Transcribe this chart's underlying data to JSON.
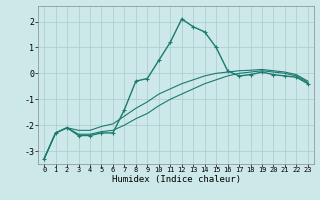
{
  "title": "",
  "xlabel": "Humidex (Indice chaleur)",
  "ylabel": "",
  "bg_color": "#cce8e8",
  "grid_color": "#aacccc",
  "line_color": "#1a7a6e",
  "xlim": [
    -0.5,
    23.5
  ],
  "ylim": [
    -3.5,
    2.6
  ],
  "xticks": [
    0,
    1,
    2,
    3,
    4,
    5,
    6,
    7,
    8,
    9,
    10,
    11,
    12,
    13,
    14,
    15,
    16,
    17,
    18,
    19,
    20,
    21,
    22,
    23
  ],
  "yticks": [
    -3,
    -2,
    -1,
    0,
    1,
    2
  ],
  "series": [
    {
      "x": [
        0,
        1,
        2,
        3,
        4,
        5,
        6,
        7,
        8,
        9,
        10,
        11,
        12,
        13,
        14,
        15,
        16,
        17,
        18,
        19,
        20,
        21,
        22,
        23
      ],
      "y": [
        -3.3,
        -2.3,
        -2.1,
        -2.4,
        -2.4,
        -2.3,
        -2.3,
        -1.4,
        -0.3,
        -0.2,
        0.5,
        1.2,
        2.1,
        1.8,
        1.6,
        1.0,
        0.1,
        -0.1,
        -0.05,
        0.05,
        -0.05,
        -0.1,
        -0.15,
        -0.4
      ],
      "marker": "+",
      "lw": 1.0
    },
    {
      "x": [
        0,
        1,
        2,
        3,
        4,
        5,
        6,
        7,
        8,
        9,
        10,
        11,
        12,
        13,
        14,
        15,
        16,
        17,
        18,
        19,
        20,
        21,
        22,
        23
      ],
      "y": [
        -3.3,
        -2.3,
        -2.1,
        -2.35,
        -2.35,
        -2.25,
        -2.2,
        -2.0,
        -1.75,
        -1.55,
        -1.25,
        -1.0,
        -0.8,
        -0.6,
        -0.4,
        -0.25,
        -0.1,
        0.0,
        0.05,
        0.1,
        0.05,
        0.0,
        -0.1,
        -0.35
      ],
      "marker": null,
      "lw": 0.8
    },
    {
      "x": [
        0,
        1,
        2,
        3,
        4,
        5,
        6,
        7,
        8,
        9,
        10,
        11,
        12,
        13,
        14,
        15,
        16,
        17,
        18,
        19,
        20,
        21,
        22,
        23
      ],
      "y": [
        -3.3,
        -2.3,
        -2.1,
        -2.2,
        -2.2,
        -2.05,
        -1.95,
        -1.65,
        -1.35,
        -1.1,
        -0.8,
        -0.6,
        -0.4,
        -0.25,
        -0.1,
        0.0,
        0.05,
        0.1,
        0.12,
        0.15,
        0.1,
        0.05,
        -0.05,
        -0.3
      ],
      "marker": null,
      "lw": 0.8
    }
  ]
}
